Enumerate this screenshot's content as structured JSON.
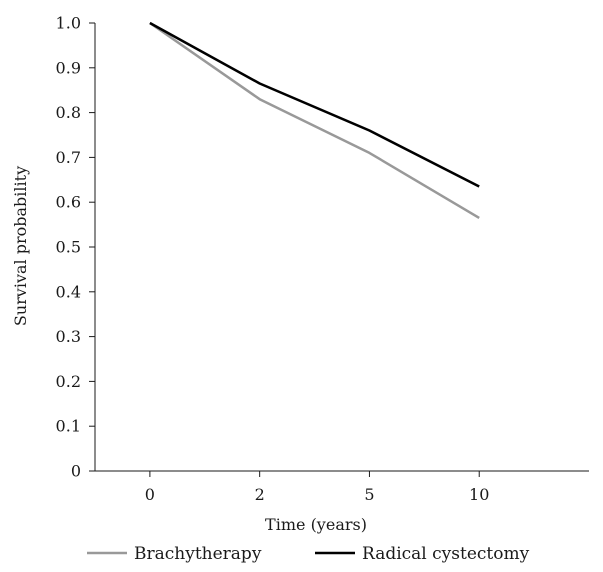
{
  "chart_data": {
    "type": "line",
    "xlabel": "Time (years)",
    "ylabel": "Survival probability",
    "categories": [
      "0",
      "2",
      "5",
      "10"
    ],
    "yticks": [
      "0",
      "0.1",
      "0.2",
      "0.3",
      "0.4",
      "0.5",
      "0.6",
      "0.7",
      "0.8",
      "0.9",
      "1.0"
    ],
    "ylim": [
      0,
      1.0
    ],
    "grid": false,
    "legend_position": "bottom",
    "series": [
      {
        "name": "Brachytherapy",
        "color": "#999999",
        "values": [
          1.0,
          0.83,
          0.71,
          0.565
        ]
      },
      {
        "name": "Radical cystectomy",
        "color": "#000000",
        "values": [
          1.0,
          0.865,
          0.76,
          0.635
        ]
      }
    ]
  }
}
